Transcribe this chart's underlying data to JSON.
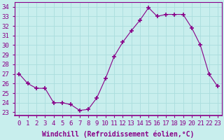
{
  "x": [
    0,
    1,
    2,
    3,
    4,
    5,
    6,
    7,
    8,
    9,
    10,
    11,
    12,
    13,
    14,
    15,
    16,
    17,
    18,
    19,
    20,
    21,
    22,
    23
  ],
  "y": [
    27.0,
    26.0,
    25.5,
    25.5,
    24.0,
    24.0,
    23.8,
    23.2,
    23.3,
    24.5,
    26.5,
    28.8,
    30.3,
    31.5,
    32.6,
    33.9,
    33.0,
    33.2,
    33.2,
    33.2,
    31.8,
    30.0,
    27.0,
    25.7
  ],
  "line_color": "#880088",
  "marker": "+",
  "marker_size": 5,
  "bg_color": "#c8eeed",
  "grid_color": "#aadddd",
  "xlabel": "Windchill (Refroidissement éolien,°C)",
  "ylabel_ticks": [
    23,
    24,
    25,
    26,
    27,
    28,
    29,
    30,
    31,
    32,
    33,
    34
  ],
  "xticks": [
    0,
    1,
    2,
    3,
    4,
    5,
    6,
    7,
    8,
    9,
    10,
    11,
    12,
    13,
    14,
    15,
    16,
    17,
    18,
    19,
    20,
    21,
    22,
    23
  ],
  "ylim": [
    22.7,
    34.5
  ],
  "xlim": [
    -0.5,
    23.5
  ],
  "xlabel_fontsize": 7,
  "tick_fontsize": 6.5,
  "label_color": "#880088"
}
